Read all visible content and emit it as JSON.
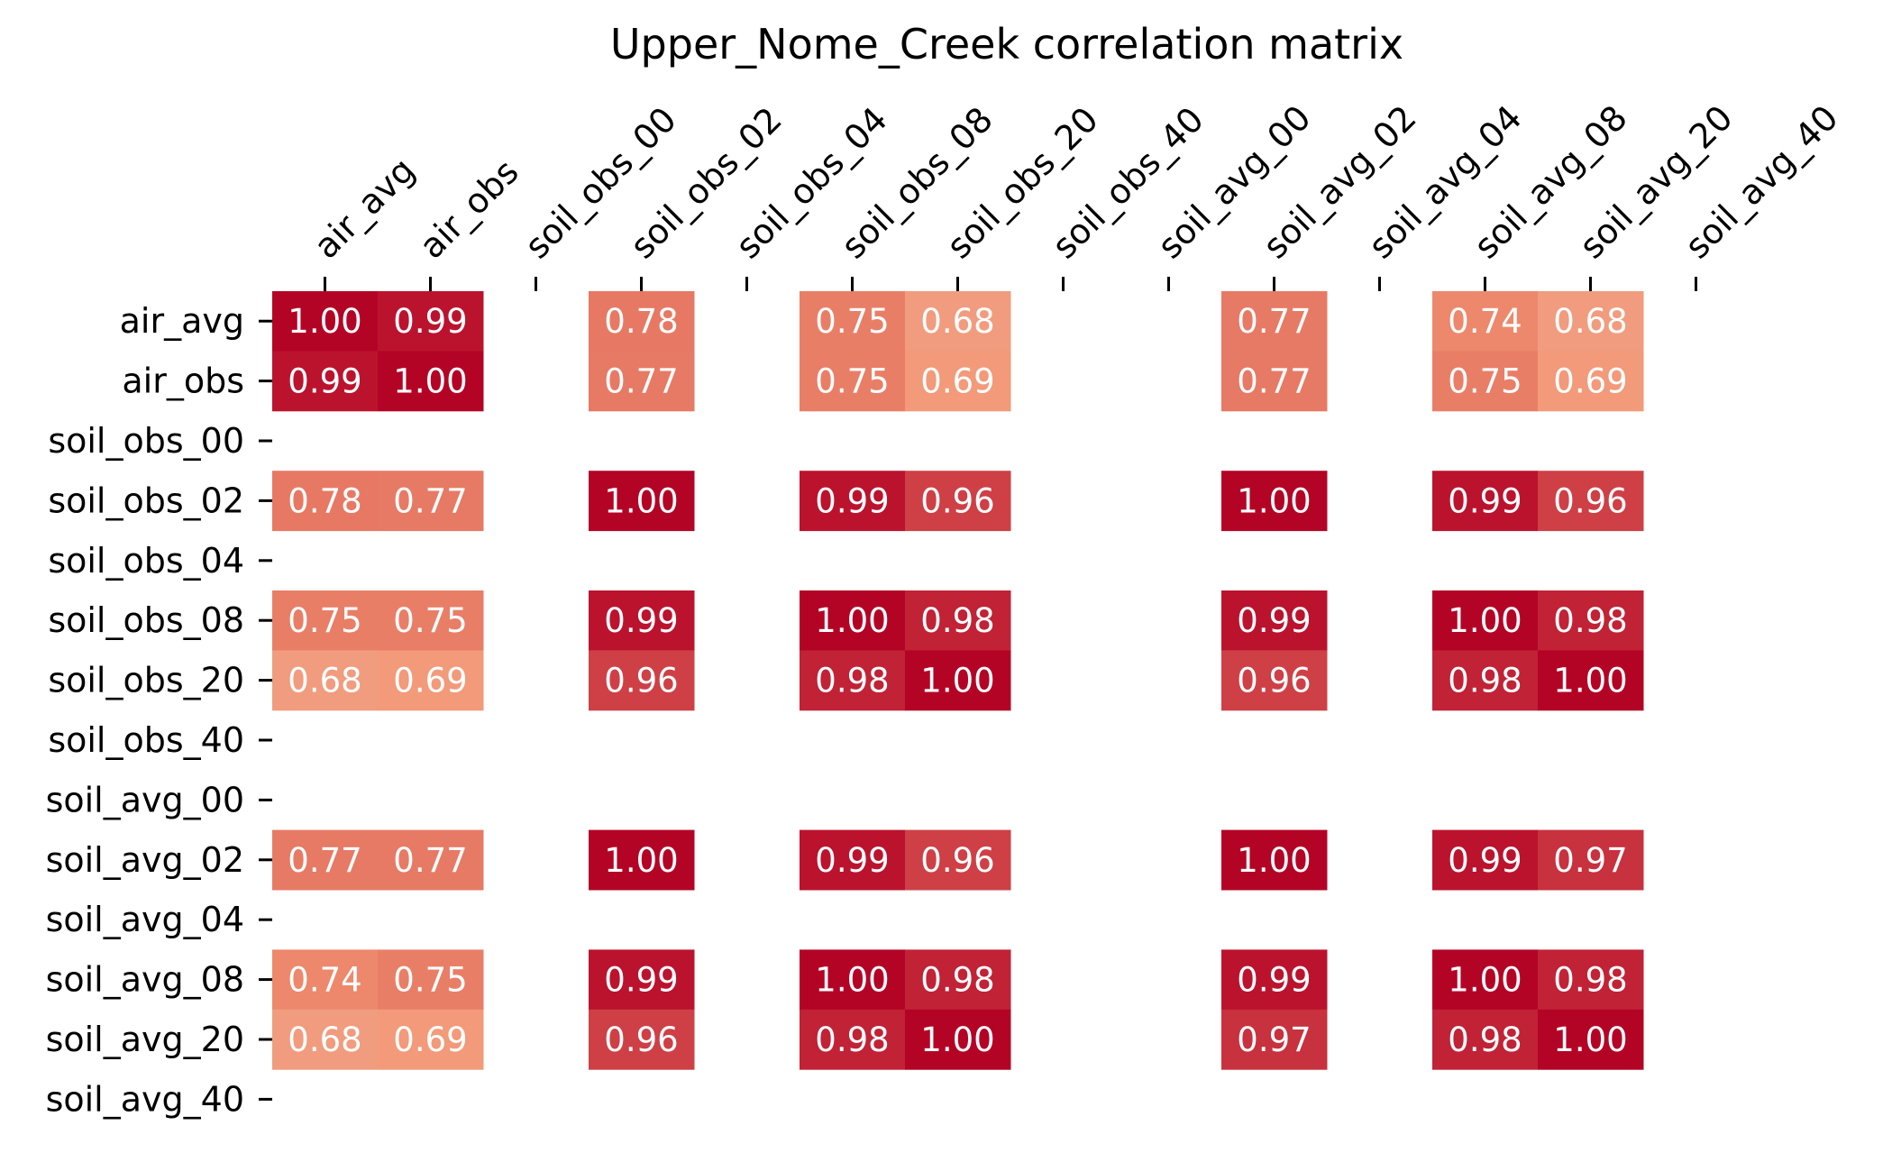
{
  "chart_data": {
    "type": "heatmap",
    "title": "Upper_Nome_Creek correlation matrix",
    "xlabel": "",
    "ylabel": "",
    "x_tick_position": "top",
    "colormap": "coolwarm",
    "value_range": [
      -1,
      1
    ],
    "grid": false,
    "colorbar": false,
    "x_categories": [
      "air_avg",
      "air_obs",
      "soil_obs_00",
      "soil_obs_02",
      "soil_obs_04",
      "soil_obs_08",
      "soil_obs_20",
      "soil_obs_40",
      "soil_avg_00",
      "soil_avg_02",
      "soil_avg_04",
      "soil_avg_08",
      "soil_avg_20",
      "soil_avg_40"
    ],
    "y_categories": [
      "air_avg",
      "air_obs",
      "soil_obs_00",
      "soil_obs_02",
      "soil_obs_04",
      "soil_obs_08",
      "soil_obs_20",
      "soil_obs_40",
      "soil_avg_00",
      "soil_avg_02",
      "soil_avg_04",
      "soil_avg_08",
      "soil_avg_20",
      "soil_avg_40"
    ],
    "values": [
      [
        1.0,
        0.99,
        null,
        0.78,
        null,
        0.75,
        0.68,
        null,
        null,
        0.77,
        null,
        0.74,
        0.68,
        null
      ],
      [
        0.99,
        1.0,
        null,
        0.77,
        null,
        0.75,
        0.69,
        null,
        null,
        0.77,
        null,
        0.75,
        0.69,
        null
      ],
      [
        null,
        null,
        null,
        null,
        null,
        null,
        null,
        null,
        null,
        null,
        null,
        null,
        null,
        null
      ],
      [
        0.78,
        0.77,
        null,
        1.0,
        null,
        0.99,
        0.96,
        null,
        null,
        1.0,
        null,
        0.99,
        0.96,
        null
      ],
      [
        null,
        null,
        null,
        null,
        null,
        null,
        null,
        null,
        null,
        null,
        null,
        null,
        null,
        null
      ],
      [
        0.75,
        0.75,
        null,
        0.99,
        null,
        1.0,
        0.98,
        null,
        null,
        0.99,
        null,
        1.0,
        0.98,
        null
      ],
      [
        0.68,
        0.69,
        null,
        0.96,
        null,
        0.98,
        1.0,
        null,
        null,
        0.96,
        null,
        0.98,
        1.0,
        null
      ],
      [
        null,
        null,
        null,
        null,
        null,
        null,
        null,
        null,
        null,
        null,
        null,
        null,
        null,
        null
      ],
      [
        null,
        null,
        null,
        null,
        null,
        null,
        null,
        null,
        null,
        null,
        null,
        null,
        null,
        null
      ],
      [
        0.77,
        0.77,
        null,
        1.0,
        null,
        0.99,
        0.96,
        null,
        null,
        1.0,
        null,
        0.99,
        0.97,
        null
      ],
      [
        null,
        null,
        null,
        null,
        null,
        null,
        null,
        null,
        null,
        null,
        null,
        null,
        null,
        null
      ],
      [
        0.74,
        0.75,
        null,
        0.99,
        null,
        1.0,
        0.98,
        null,
        null,
        0.99,
        null,
        1.0,
        0.98,
        null
      ],
      [
        0.68,
        0.69,
        null,
        0.96,
        null,
        0.98,
        1.0,
        null,
        null,
        0.97,
        null,
        0.98,
        1.0,
        null
      ],
      [
        null,
        null,
        null,
        null,
        null,
        null,
        null,
        null,
        null,
        null,
        null,
        null,
        null,
        null
      ]
    ],
    "value_format": "2 decimals"
  }
}
